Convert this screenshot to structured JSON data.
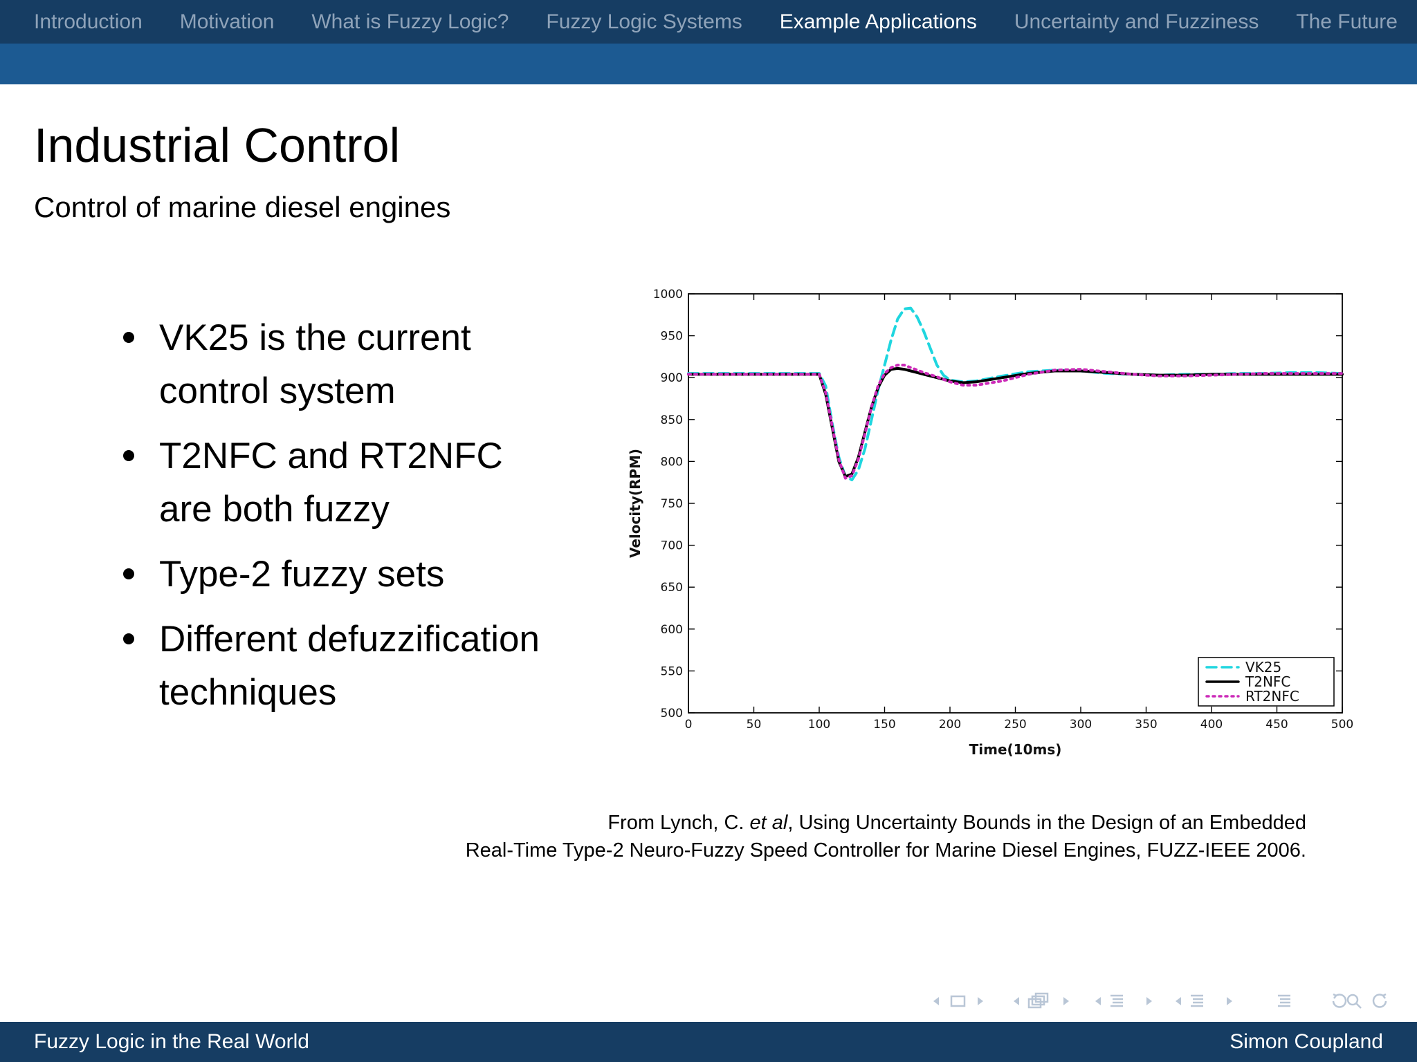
{
  "nav": {
    "items": [
      {
        "label": "Introduction",
        "active": false
      },
      {
        "label": "Motivation",
        "active": false
      },
      {
        "label": "What is Fuzzy Logic?",
        "active": false
      },
      {
        "label": "Fuzzy Logic Systems",
        "active": false
      },
      {
        "label": "Example Applications",
        "active": true
      },
      {
        "label": "Uncertainty and Fuzziness",
        "active": false
      },
      {
        "label": "The Future",
        "active": false
      }
    ]
  },
  "slide": {
    "title": "Industrial Control",
    "subtitle": "Control of marine diesel engines",
    "bullets": [
      "VK25 is the current control system",
      "T2NFC and RT2NFC are both fuzzy",
      "Type-2 fuzzy sets",
      "Different defuzzification techniques"
    ],
    "citation": {
      "line1_prefix": "From Lynch, C. ",
      "line1_italic": "et al",
      "line1_suffix": ", Using Uncertainty Bounds in the Design of an Embedded",
      "line2": "Real-Time Type-2 Neuro-Fuzzy Speed Controller for Marine Diesel Engines, FUZZ-IEEE 2006."
    }
  },
  "footer": {
    "left": "Fuzzy Logic in the Real World",
    "right": "Simon Coupland"
  },
  "chart_data": {
    "type": "line",
    "xlabel": "Time(10ms)",
    "ylabel": "Velocity(RPM)",
    "xlim": [
      0,
      500
    ],
    "ylim": [
      500,
      1000
    ],
    "xticks": [
      0,
      50,
      100,
      150,
      200,
      250,
      300,
      350,
      400,
      450,
      500
    ],
    "yticks": [
      500,
      550,
      600,
      650,
      700,
      750,
      800,
      850,
      900,
      950,
      1000
    ],
    "legend_position": "bottom-right",
    "series": [
      {
        "name": "VK25",
        "color": "#1fd6df",
        "style": "dashed",
        "x": [
          0,
          50,
          100,
          105,
          110,
          115,
          120,
          125,
          130,
          135,
          140,
          145,
          150,
          155,
          160,
          165,
          170,
          175,
          180,
          185,
          190,
          195,
          200,
          210,
          220,
          240,
          260,
          280,
          300,
          320,
          340,
          360,
          380,
          400,
          420,
          440,
          460,
          480,
          500
        ],
        "y": [
          905,
          905,
          905,
          890,
          845,
          805,
          782,
          778,
          790,
          815,
          850,
          885,
          915,
          945,
          970,
          982,
          983,
          972,
          955,
          935,
          915,
          903,
          897,
          895,
          896,
          902,
          907,
          909,
          908,
          905,
          904,
          903,
          904,
          904,
          905,
          905,
          906,
          906,
          905
        ]
      },
      {
        "name": "T2NFC",
        "color": "#000000",
        "style": "solid",
        "x": [
          0,
          50,
          100,
          105,
          110,
          115,
          120,
          125,
          130,
          135,
          140,
          145,
          150,
          155,
          160,
          165,
          170,
          175,
          180,
          190,
          200,
          210,
          220,
          240,
          260,
          280,
          300,
          320,
          340,
          360,
          380,
          400,
          420,
          440,
          460,
          480,
          500
        ],
        "y": [
          904,
          904,
          904,
          880,
          840,
          800,
          782,
          785,
          805,
          835,
          865,
          888,
          903,
          910,
          911,
          910,
          908,
          906,
          904,
          900,
          896,
          894,
          895,
          900,
          905,
          908,
          908,
          906,
          904,
          903,
          903,
          904,
          904,
          904,
          904,
          904,
          904
        ]
      },
      {
        "name": "RT2NFC",
        "color": "#cc2ab8",
        "style": "dotted",
        "x": [
          0,
          50,
          100,
          105,
          110,
          115,
          120,
          125,
          130,
          135,
          140,
          145,
          150,
          155,
          160,
          165,
          170,
          175,
          180,
          190,
          200,
          210,
          220,
          240,
          260,
          280,
          300,
          320,
          340,
          360,
          380,
          400,
          420,
          440,
          460,
          480,
          500
        ],
        "y": [
          904,
          904,
          904,
          882,
          842,
          802,
          780,
          783,
          803,
          833,
          865,
          890,
          905,
          912,
          915,
          915,
          912,
          909,
          906,
          901,
          895,
          891,
          891,
          896,
          904,
          909,
          910,
          907,
          904,
          902,
          902,
          903,
          904,
          905,
          905,
          905,
          905
        ]
      }
    ]
  }
}
